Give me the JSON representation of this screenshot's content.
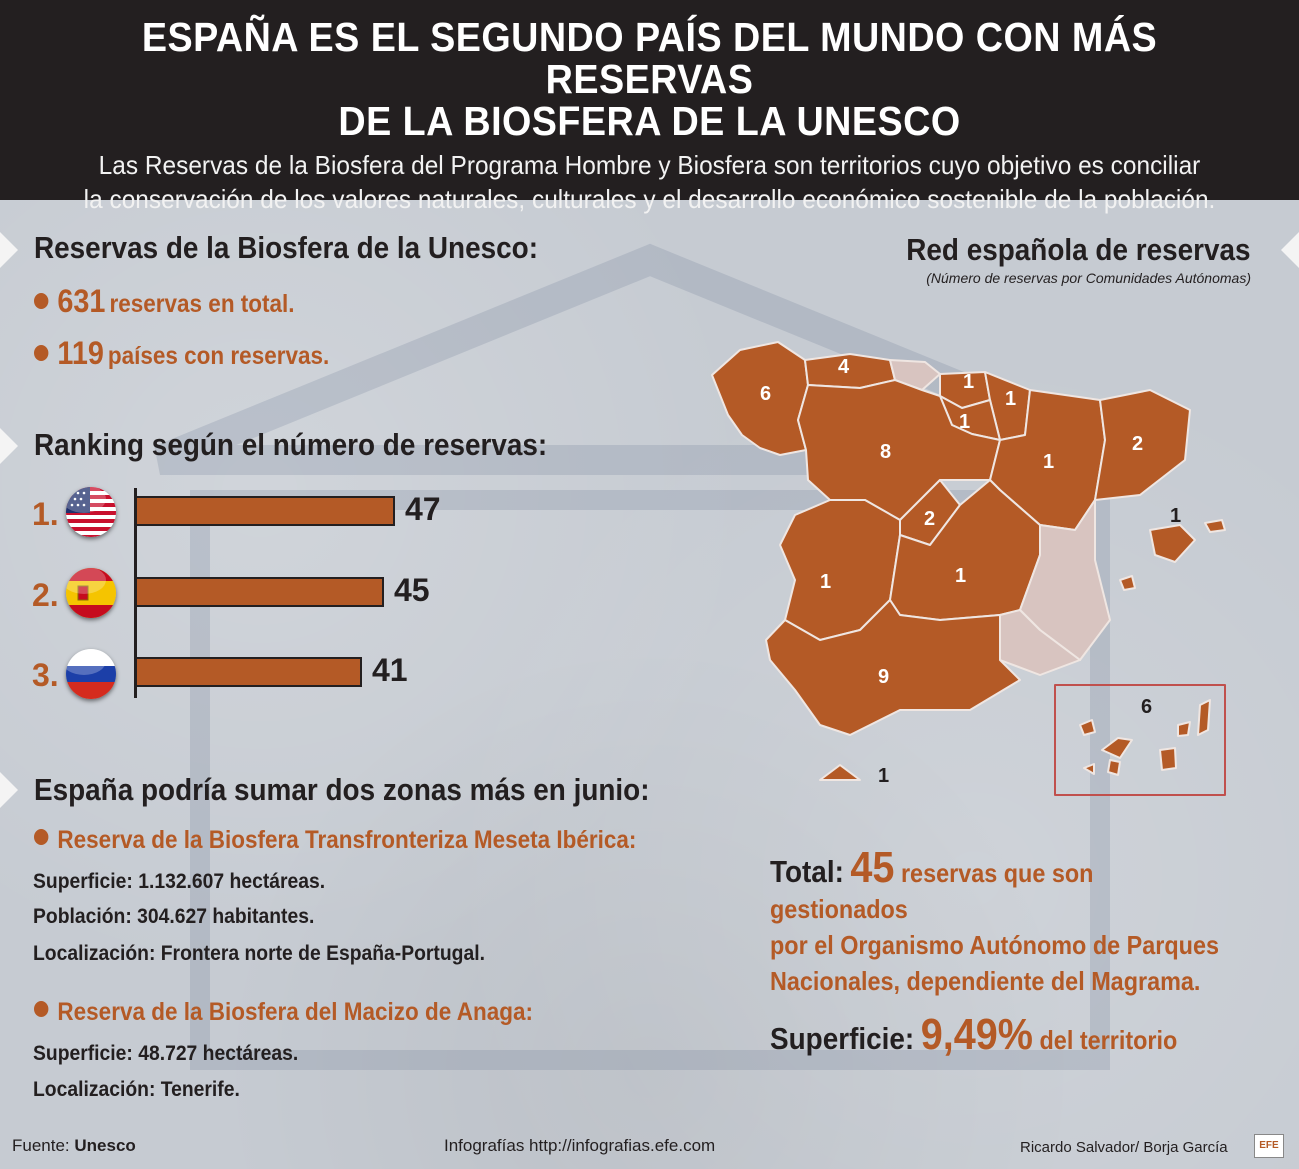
{
  "header": {
    "title_line1": "ESPAÑA ES EL SEGUNDO PAÍS DEL MUNDO CON MÁS RESERVAS",
    "title_line2": "DE LA BIOSFERA DE LA UNESCO",
    "subtitle_line1": "Las Reservas de la Biosfera del Programa Hombre y Biosfera son territorios cuyo objetivo es conciliar",
    "subtitle_line2": "la conservación de los valores naturales, culturales y el desarrollo económico sostenible de la población."
  },
  "unesco": {
    "heading": "Reservas de la Biosfera de la Unesco:",
    "stat1_num": "631",
    "stat1_text": "reservas en total.",
    "stat2_num": "119",
    "stat2_text": "países con reservas."
  },
  "ranking": {
    "heading": "Ranking según el número de reservas:",
    "items": [
      {
        "pos": "1.",
        "flag": "usa-flag-icon",
        "value": "47"
      },
      {
        "pos": "2.",
        "flag": "spain-flag-icon",
        "value": "45"
      },
      {
        "pos": "3.",
        "flag": "russia-flag-icon",
        "value": "41"
      }
    ]
  },
  "chart_data": {
    "type": "bar",
    "categories": [
      "1.",
      "2.",
      "3."
    ],
    "values": [
      47,
      45,
      41
    ]
  },
  "proposals": {
    "heading": "España podría sumar dos zonas más en junio:",
    "items": [
      {
        "title": "Reserva de la Biosfera Transfronteriza Meseta Ibérica:",
        "lines": [
          "Superficie: 1.132.607 hectáreas.",
          "Población: 304.627 habitantes.",
          "Localización: Frontera norte de España-Portugal."
        ]
      },
      {
        "title": "Reserva de la Biosfera del Macizo de Anaga:",
        "lines": [
          "Superficie: 48.727 hectáreas.",
          "Localización: Tenerife."
        ]
      }
    ]
  },
  "map": {
    "title": "Red española de reservas",
    "subtitle": "(Número de reservas por Comunidades Autónomas)",
    "regions": [
      "6",
      "4",
      "1",
      "1",
      "1",
      "8",
      "1",
      "2",
      "2",
      "1",
      "1",
      "1",
      "9",
      "1",
      "6"
    ],
    "region_color": "#b45a26",
    "empty_color": "#d8c4c0"
  },
  "total": {
    "label": "Total:",
    "number": "45",
    "text1": "reservas que son gestionados",
    "text2": "por el Organismo Autónomo de Parques",
    "text3": "Nacionales, dependiente del Magrama."
  },
  "surface": {
    "label": "Superficie:",
    "number": "9,49%",
    "text": "del territorio"
  },
  "footer": {
    "source_label": "Fuente:",
    "source": "Unesco",
    "url": "Infografías http://infografias.efe.com",
    "authors": "Ricardo Salvador/ Borja García",
    "logo": "EFE"
  }
}
